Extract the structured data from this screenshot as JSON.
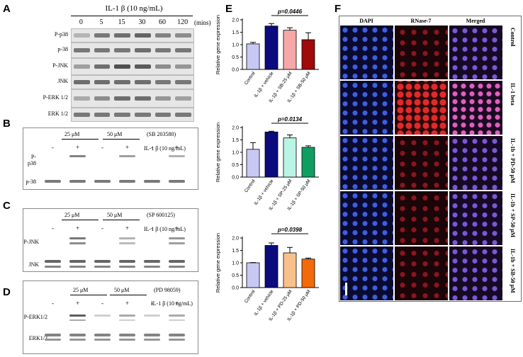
{
  "panels": {
    "A": {
      "label": "A",
      "treatment": "IL-1 β (10 ng/mL)",
      "times": [
        "0",
        "5",
        "15",
        "30",
        "60",
        "120"
      ],
      "time_unit": "(mins)",
      "rows": [
        "P-p38",
        "p-38",
        "P-JNK",
        "JNK",
        "P-ERK 1/2",
        "ERK 1/2"
      ]
    },
    "B": {
      "label": "B",
      "conc1": "25 μM",
      "conc2": "50 μM",
      "inhibitor": "(SB 203580)",
      "signs": [
        "-",
        "+",
        "-",
        "+",
        "-",
        "+"
      ],
      "il1": "IL-1 β (10 ng/mL)",
      "rows": [
        "P-p38",
        "p-38"
      ]
    },
    "C": {
      "label": "C",
      "conc1": "25 μM",
      "conc2": "50 μM",
      "inhibitor": "(SP 600125)",
      "signs": [
        "-",
        "+",
        "-",
        "+",
        "-",
        "+"
      ],
      "il1": "IL-1 β (10 ng/mL)",
      "rows": [
        "P-JNK",
        "JNK"
      ]
    },
    "D": {
      "label": "D",
      "conc1": "25 μM",
      "conc2": "50 μM",
      "inhibitor": "(PD 98059)",
      "signs": [
        "-",
        "+",
        "-",
        "+",
        "-",
        "+"
      ],
      "il1": "IL-1 β (10 ng/mL)",
      "rows": [
        "P-ERK1/2",
        "ERK1/2"
      ]
    },
    "E": {
      "label": "E"
    },
    "F": {
      "label": "F",
      "columns": [
        "DAPI",
        "RNase-7",
        "Merged"
      ],
      "rows": [
        "Control",
        "IL-1 beta",
        "IL-1b + PD-50 μM",
        "IL-1b + SP-50 μM",
        "IL-1b + SB-50 μM"
      ]
    }
  },
  "chart_data": [
    {
      "type": "bar",
      "ylabel": "Relative gene expression",
      "categories": [
        "Control",
        "IL-1β + vehicle",
        "IL-1β + SB-25 μM",
        "IL-1β + SB-50 μM"
      ],
      "values": [
        1.03,
        1.75,
        1.58,
        1.2
      ],
      "errors": [
        0.06,
        0.1,
        0.1,
        0.28
      ],
      "colors": [
        "#c9c8f5",
        "#0b0b7d",
        "#f7a7a7",
        "#a00a0a"
      ],
      "ylim": [
        0,
        2.0
      ],
      "yticks": [
        "0.0",
        "0.5",
        "1.0",
        "1.5",
        "2.0"
      ],
      "annotation": "p=0.0446"
    },
    {
      "type": "bar",
      "ylabel": "Relative gene expression",
      "categories": [
        "Control",
        "IL-1β + vehicle",
        "IL-1β + SP-25 μM",
        "IL-1β + SP-50 μM"
      ],
      "values": [
        1.12,
        1.82,
        1.58,
        1.2
      ],
      "errors": [
        0.27,
        0.03,
        0.12,
        0.06
      ],
      "colors": [
        "#c9c8f5",
        "#0b0b7d",
        "#b9f4e4",
        "#0f9e62"
      ],
      "ylim": [
        0,
        2.0
      ],
      "yticks": [
        "0.0",
        "0.5",
        "1.0",
        "1.5",
        "2.0"
      ],
      "annotation": "p=0.0134"
    },
    {
      "type": "bar",
      "ylabel": "Relative gene expression",
      "categories": [
        "Control",
        "IL-1β + vehicle",
        "IL-1β + PD-25 μM",
        "IL-1β + PD-50 μM"
      ],
      "values": [
        1.0,
        1.7,
        1.4,
        1.15
      ],
      "errors": [
        0.01,
        0.1,
        0.22,
        0.04
      ],
      "colors": [
        "#c9c8f5",
        "#0b0b7d",
        "#f9c08a",
        "#f36a0b"
      ],
      "ylim": [
        0,
        2.0
      ],
      "yticks": [
        "0.0",
        "0.5",
        "1.0",
        "1.5",
        "2.0"
      ],
      "annotation": "p=0.0398"
    }
  ]
}
